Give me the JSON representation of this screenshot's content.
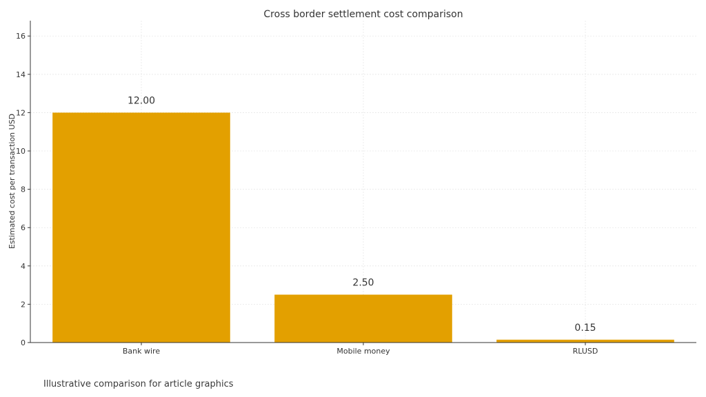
{
  "caption": "Illustrative comparison for article graphics",
  "chart_data": {
    "type": "bar",
    "title": "Cross border settlement cost comparison",
    "xlabel": "",
    "ylabel": "Estimated cost per transaction USD",
    "categories": [
      "Bank wire",
      "Mobile money",
      "RLUSD"
    ],
    "values": [
      12.0,
      2.5,
      0.15
    ],
    "data_labels": [
      "12.00",
      "2.50",
      "0.15"
    ],
    "ylim": [
      0,
      16.8
    ],
    "yticks": [
      0,
      2,
      4,
      6,
      8,
      10,
      12,
      14,
      16
    ],
    "grid": true,
    "bar_color": "#E3A000",
    "legend": "none"
  }
}
